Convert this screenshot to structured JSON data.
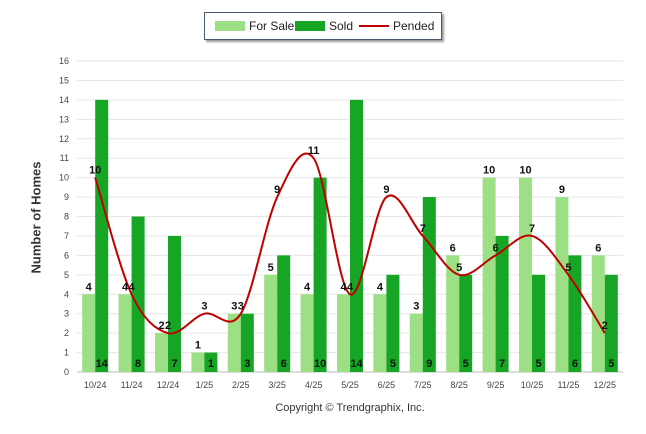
{
  "chart_data": {
    "type": "bar",
    "categories": [
      "10/24",
      "11/24",
      "12/24",
      "1/25",
      "2/25",
      "3/25",
      "4/25",
      "5/25",
      "6/25",
      "7/25",
      "8/25",
      "9/25",
      "10/25",
      "11/25",
      "12/25"
    ],
    "series": [
      {
        "name": "For Sale",
        "type": "bar",
        "color": "#9cdf84",
        "values": [
          4,
          4,
          2,
          1,
          3,
          5,
          4,
          4,
          4,
          3,
          6,
          10,
          10,
          9,
          6
        ]
      },
      {
        "name": "Sold",
        "type": "bar",
        "color": "#16a524",
        "values": [
          14,
          8,
          7,
          1,
          3,
          6,
          10,
          14,
          5,
          9,
          5,
          7,
          5,
          6,
          5
        ]
      },
      {
        "name": "Pended",
        "type": "line",
        "color": "#c00000",
        "values": [
          10,
          4,
          2,
          3,
          3,
          9,
          11,
          4,
          9,
          7,
          5,
          6,
          7,
          5,
          2
        ]
      }
    ],
    "ylabel": "Number of Homes",
    "xlabel": "",
    "ylim": [
      0,
      16
    ],
    "yticks": [
      0,
      1,
      2,
      3,
      4,
      5,
      6,
      7,
      8,
      9,
      10,
      11,
      12,
      13,
      14,
      15,
      16
    ],
    "legend_position": "top-center",
    "grid": true
  },
  "footer": {
    "copyright": "Copyright © Trendgraphix, Inc."
  }
}
